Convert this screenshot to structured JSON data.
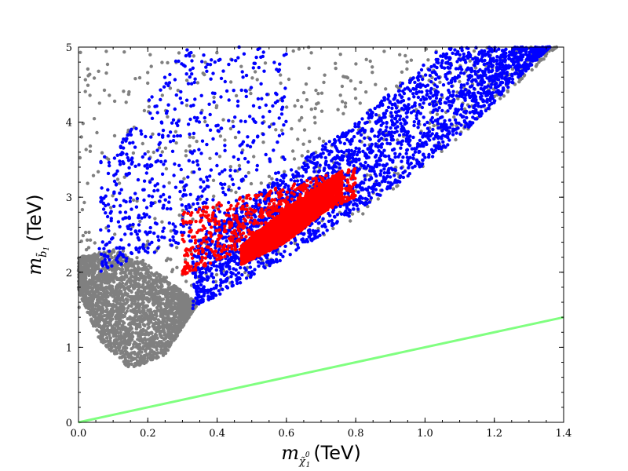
{
  "chart_data": {
    "type": "scatter",
    "title": "",
    "xlabel": {
      "symbol": "m",
      "subscript": "χ̃",
      "sub_sup": "0",
      "sub_index": "1",
      "unit": "(TeV)"
    },
    "ylabel": {
      "symbol": "m",
      "subscript": "b̃",
      "sub_index": "1",
      "unit": "(TeV)"
    },
    "xlim": [
      0.0,
      1.4
    ],
    "ylim": [
      0,
      5
    ],
    "x_ticks": [
      "0.0",
      "0.2",
      "0.4",
      "0.6",
      "0.8",
      "1.0",
      "1.2",
      "1.4"
    ],
    "y_ticks": [
      "0",
      "1",
      "2",
      "3",
      "4",
      "5"
    ],
    "grid": false,
    "legend": "none",
    "series": [
      {
        "color": "#808080",
        "regions": [
          {
            "x_range": [
              0.0,
              0.34
            ],
            "lower": [
              [
                0.0,
                1.75
              ],
              [
                0.06,
                1.1
              ],
              [
                0.15,
                0.7
              ],
              [
                0.25,
                0.9
              ],
              [
                0.34,
                1.55
              ]
            ],
            "upper": [
              [
                0.0,
                2.2
              ],
              [
                0.1,
                2.3
              ],
              [
                0.2,
                2.1
              ],
              [
                0.34,
                1.6
              ]
            ],
            "density": "dense"
          },
          {
            "x_range": [
              0.0,
              1.38
            ],
            "lower": [
              [
                0.3,
                1.5
              ],
              [
                0.8,
                2.7
              ],
              [
                1.1,
                3.8
              ],
              [
                1.38,
                5.0
              ]
            ],
            "upper": [
              [
                0.0,
                5.0
              ],
              [
                1.38,
                5.0
              ]
            ],
            "density": "sparse"
          }
        ]
      },
      {
        "color": "#0000ff",
        "regions": [
          {
            "x_range": [
              0.33,
              1.36
            ],
            "lower": [
              [
                0.33,
                1.5
              ],
              [
                0.6,
                2.2
              ],
              [
                0.9,
                3.1
              ],
              [
                1.1,
                3.8
              ],
              [
                1.36,
                5.0
              ]
            ],
            "upper": [
              [
                0.33,
                2.3
              ],
              [
                0.5,
                3.0
              ],
              [
                0.8,
                4.0
              ],
              [
                1.05,
                5.0
              ]
            ],
            "density": "dense"
          },
          {
            "x_range": [
              0.06,
              0.6
            ],
            "lower": [
              [
                0.06,
                2.0
              ],
              [
                0.3,
                2.4
              ]
            ],
            "upper": [
              [
                0.1,
                3.6
              ],
              [
                0.3,
                5.0
              ],
              [
                0.6,
                5.0
              ]
            ],
            "density": "sparse"
          }
        ]
      },
      {
        "color": "#ff0000",
        "regions": [
          {
            "x_range": [
              0.47,
              0.76
            ],
            "lower": [
              [
                0.47,
                2.1
              ],
              [
                0.6,
                2.4
              ],
              [
                0.76,
                3.0
              ]
            ],
            "upper": [
              [
                0.47,
                2.35
              ],
              [
                0.6,
                2.85
              ],
              [
                0.76,
                3.35
              ]
            ],
            "density": "dense"
          },
          {
            "x_range": [
              0.3,
              0.8
            ],
            "lower": [
              [
                0.3,
                1.95
              ],
              [
                0.8,
                3.0
              ]
            ],
            "upper": [
              [
                0.3,
                2.8
              ],
              [
                0.8,
                3.4
              ]
            ],
            "density": "sparse"
          }
        ]
      }
    ],
    "lines": [
      {
        "color": "#80ff80",
        "x": [
          0.0,
          1.4
        ],
        "y": [
          0.0,
          1.4
        ]
      }
    ]
  }
}
